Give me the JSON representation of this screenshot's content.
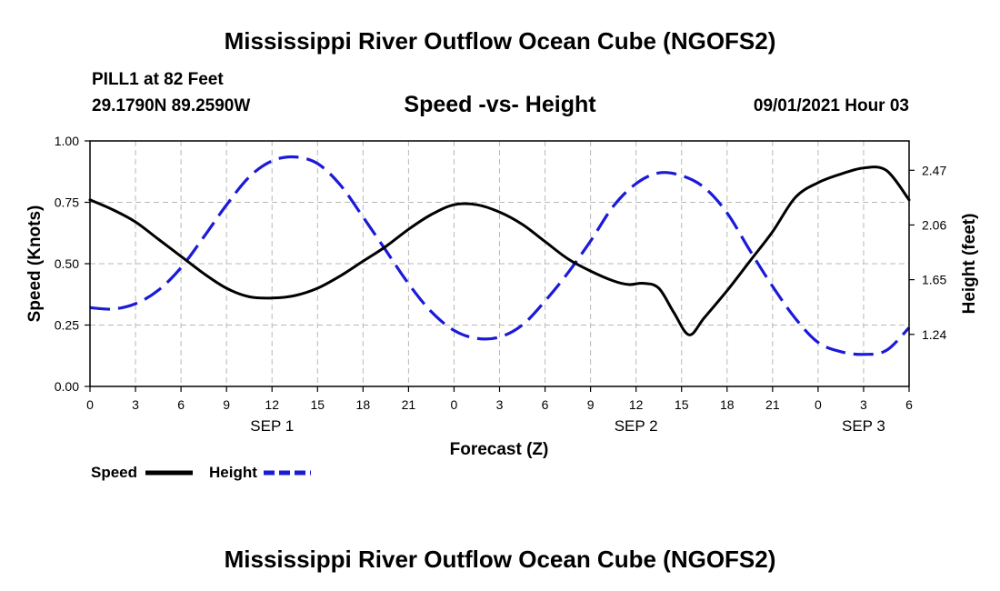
{
  "header": {
    "title": "Mississippi River Outflow Ocean Cube (NGOFS2)",
    "station": "PILL1 at 82 Feet",
    "coordinates": "29.1790N  89.2590W",
    "datetime": "09/01/2021 Hour 03"
  },
  "footer": {
    "title": "Mississippi River Outflow Ocean Cube (NGOFS2)"
  },
  "colors": {
    "speed": "#000000",
    "height": "#1a1ad8",
    "grid": "#b8b8b8"
  },
  "chart_data": {
    "type": "line",
    "title": "Speed -vs- Height",
    "xlabel": "Forecast (Z)",
    "ylabel": "Speed (Knots)",
    "y2label": "Height (feet)",
    "xlim": [
      0,
      54
    ],
    "ylim": [
      0,
      1.0
    ],
    "y2lim": [
      0.85,
      2.69
    ],
    "x_ticks": [
      0,
      3,
      6,
      9,
      12,
      15,
      18,
      21,
      24,
      27,
      30,
      33,
      36,
      39,
      42,
      45,
      48,
      51,
      54
    ],
    "x_tick_labels": [
      "0",
      "3",
      "6",
      "9",
      "12",
      "15",
      "18",
      "21",
      "0",
      "3",
      "6",
      "9",
      "12",
      "15",
      "18",
      "21",
      "0",
      "3",
      "6"
    ],
    "date_labels": [
      {
        "x": 12,
        "label": "SEP 1"
      },
      {
        "x": 36,
        "label": "SEP 2"
      },
      {
        "x": 51,
        "label": "SEP 3"
      }
    ],
    "y_ticks": [
      0.0,
      0.25,
      0.5,
      0.75,
      1.0
    ],
    "y_tick_labels": [
      "0.00",
      "0.25",
      "0.50",
      "0.75",
      "1.00"
    ],
    "y2_ticks": [
      1.24,
      1.65,
      2.06,
      2.47
    ],
    "y2_tick_labels": [
      "1.24",
      "1.65",
      "2.06",
      "2.47"
    ],
    "grid": true,
    "legend": {
      "position": "bottom-left",
      "entries": [
        {
          "name": "Speed",
          "style": "solid"
        },
        {
          "name": "Height",
          "style": "dashed"
        }
      ]
    },
    "series": [
      {
        "name": "Speed",
        "axis": "left",
        "x": [
          0,
          1.5,
          3,
          4.5,
          6,
          7.5,
          9,
          10.5,
          12,
          13.5,
          15,
          16.5,
          18,
          19.5,
          21,
          22.5,
          24,
          25.5,
          27,
          28.5,
          30,
          31.5,
          33,
          34.5,
          35.5,
          36.5,
          37.5,
          38.5,
          39.5,
          40.5,
          42,
          43.5,
          45,
          46.5,
          48,
          49.5,
          51,
          52.5,
          54
        ],
        "values": [
          0.76,
          0.72,
          0.67,
          0.6,
          0.53,
          0.46,
          0.4,
          0.365,
          0.36,
          0.37,
          0.4,
          0.45,
          0.51,
          0.57,
          0.64,
          0.7,
          0.74,
          0.74,
          0.71,
          0.66,
          0.59,
          0.52,
          0.47,
          0.43,
          0.415,
          0.42,
          0.4,
          0.3,
          0.21,
          0.28,
          0.39,
          0.51,
          0.63,
          0.77,
          0.83,
          0.865,
          0.89,
          0.88,
          0.76
        ]
      },
      {
        "name": "Height",
        "axis": "right",
        "x": [
          0,
          1.5,
          3,
          4.5,
          6,
          7.5,
          9,
          10.5,
          12,
          13.5,
          15,
          16.5,
          18,
          19.5,
          21,
          22.5,
          24,
          25.5,
          27,
          28.5,
          30,
          31.5,
          33,
          34.5,
          36,
          37.5,
          39,
          40.5,
          42,
          43.5,
          45,
          46.5,
          48,
          49.5,
          51,
          52.5,
          54
        ],
        "values": [
          1.44,
          1.43,
          1.47,
          1.57,
          1.74,
          1.97,
          2.21,
          2.42,
          2.54,
          2.57,
          2.52,
          2.36,
          2.12,
          1.87,
          1.62,
          1.41,
          1.27,
          1.21,
          1.22,
          1.31,
          1.49,
          1.7,
          1.94,
          2.2,
          2.37,
          2.45,
          2.43,
          2.34,
          2.15,
          1.87,
          1.6,
          1.36,
          1.18,
          1.11,
          1.09,
          1.12,
          1.29
        ]
      }
    ]
  }
}
